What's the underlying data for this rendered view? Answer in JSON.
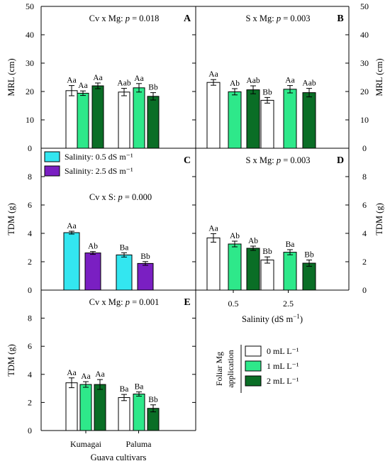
{
  "colors": {
    "white_bar": "#ffffff",
    "light_green": "#2ee88a",
    "dark_green": "#0a6e26",
    "cyan": "#33e6f0",
    "purple": "#7a1fc2",
    "axis": "#000000"
  },
  "chart_data": [
    {
      "id": "A",
      "type": "bar",
      "letter": "A",
      "title_prefix": "Cv x Mg: ",
      "title_p": "p",
      "title_suffix": " = 0.018",
      "ylabel": "MRL (cm)",
      "ylim": [
        0,
        50
      ],
      "yticks": [
        0,
        10,
        20,
        30,
        40,
        50
      ],
      "categories": [
        "Kumagai",
        "Paluma"
      ],
      "series": [
        {
          "name": "0 mL L⁻¹",
          "color": "white_bar",
          "values": [
            20.3,
            19.8
          ],
          "errors": [
            1.8,
            1.3
          ],
          "labels": [
            "Aa",
            "Aab"
          ]
        },
        {
          "name": "1 mL L⁻¹",
          "color": "light_green",
          "values": [
            19.4,
            21.3
          ],
          "errors": [
            0.8,
            1.5
          ],
          "labels": [
            "Aa",
            "Aa"
          ]
        },
        {
          "name": "2 mL L⁻¹",
          "color": "dark_green",
          "values": [
            22.0,
            18.3
          ],
          "errors": [
            1.0,
            1.3
          ],
          "labels": [
            "Aa",
            "Bb"
          ]
        }
      ]
    },
    {
      "id": "B",
      "type": "bar",
      "letter": "B",
      "title_prefix": "S x Mg: ",
      "title_p": "p",
      "title_suffix": " = 0.003",
      "ylabel": "MRL (cm)",
      "ylim": [
        0,
        50
      ],
      "yticks": [
        0,
        10,
        20,
        30,
        40,
        50
      ],
      "categories": [
        "0.5",
        "2.5"
      ],
      "series": [
        {
          "name": "0 mL L⁻¹",
          "color": "white_bar",
          "values": [
            23.2,
            16.9
          ],
          "errors": [
            1.0,
            1.0
          ],
          "labels": [
            "Aa",
            "Bb"
          ]
        },
        {
          "name": "1 mL L⁻¹",
          "color": "light_green",
          "values": [
            19.9,
            20.8
          ],
          "errors": [
            1.1,
            1.3
          ],
          "labels": [
            "Ab",
            "Aa"
          ]
        },
        {
          "name": "2 mL L⁻¹",
          "color": "dark_green",
          "values": [
            20.6,
            19.6
          ],
          "errors": [
            1.4,
            1.5
          ],
          "labels": [
            "Aab",
            "Aab"
          ]
        }
      ]
    },
    {
      "id": "C",
      "type": "bar",
      "letter": "C",
      "title_prefix": "Cv x S: ",
      "title_p": "p",
      "title_suffix": " = 0.000",
      "ylabel": "TDM (g)",
      "ylim": [
        0,
        10
      ],
      "yticks": [
        0,
        2,
        4,
        6,
        8
      ],
      "categories": [
        "Kumagai",
        "Paluma"
      ],
      "legend": {
        "placement": "top-left",
        "entries": [
          {
            "label": "Salinity: 0.5 dS m⁻¹",
            "color": "cyan"
          },
          {
            "label": "Salinity: 2.5 dS m⁻¹",
            "color": "purple"
          }
        ]
      },
      "series": [
        {
          "name": "Salinity: 0.5 dS m⁻¹",
          "color": "cyan",
          "values": [
            4.05,
            2.48
          ],
          "errors": [
            0.1,
            0.15
          ],
          "labels": [
            "Aa",
            "Ba"
          ]
        },
        {
          "name": "Salinity: 2.5 dS m⁻¹",
          "color": "purple",
          "values": [
            2.62,
            1.88
          ],
          "errors": [
            0.1,
            0.13
          ],
          "labels": [
            "Ab",
            "Bb"
          ]
        }
      ]
    },
    {
      "id": "D",
      "type": "bar",
      "letter": "D",
      "title_prefix": "S x Mg: ",
      "title_p": "p",
      "title_suffix": " = 0.003",
      "ylabel": "TDM (g)",
      "xlabel_prefix": "Salinity (dS m",
      "xlabel_sup": "−1",
      "xlabel_suffix": ")",
      "ylim": [
        0,
        10
      ],
      "yticks": [
        0,
        2,
        4,
        6,
        8
      ],
      "categories": [
        "0.5",
        "2.5"
      ],
      "series": [
        {
          "name": "0 mL L⁻¹",
          "color": "white_bar",
          "values": [
            3.68,
            2.12
          ],
          "errors": [
            0.3,
            0.22
          ],
          "labels": [
            "Aa",
            "Bb"
          ]
        },
        {
          "name": "1 mL L⁻¹",
          "color": "light_green",
          "values": [
            3.25,
            2.67
          ],
          "errors": [
            0.2,
            0.18
          ],
          "labels": [
            "Ab",
            "Ba"
          ]
        },
        {
          "name": "2 mL L⁻¹",
          "color": "dark_green",
          "values": [
            2.95,
            1.9
          ],
          "errors": [
            0.15,
            0.22
          ],
          "labels": [
            "Ab",
            "Bb"
          ]
        }
      ]
    },
    {
      "id": "E",
      "type": "bar",
      "letter": "E",
      "title_prefix": "Cv x Mg: ",
      "title_p": "p",
      "title_suffix": " = 0.001",
      "ylabel": "TDM (g)",
      "xlabel": "Guava cultivars",
      "ylim": [
        0,
        10
      ],
      "yticks": [
        0,
        2,
        4,
        6,
        8
      ],
      "categories": [
        "Kumagai",
        "Paluma"
      ],
      "series": [
        {
          "name": "0 mL L⁻¹",
          "color": "white_bar",
          "values": [
            3.4,
            2.35
          ],
          "errors": [
            0.35,
            0.22
          ],
          "labels": [
            "Aa",
            "Ba"
          ]
        },
        {
          "name": "1 mL L⁻¹",
          "color": "light_green",
          "values": [
            3.28,
            2.6
          ],
          "errors": [
            0.2,
            0.15
          ],
          "labels": [
            "Aa",
            "Ba"
          ]
        },
        {
          "name": "2 mL L⁻¹",
          "color": "dark_green",
          "values": [
            3.28,
            1.58
          ],
          "errors": [
            0.35,
            0.25
          ],
          "labels": [
            "Aa",
            "Bb"
          ]
        }
      ]
    }
  ],
  "mg_legend": {
    "title_line1": "Foliar Mg",
    "title_line2": "application",
    "entries": [
      {
        "label": "0 mL L⁻¹",
        "color": "white_bar"
      },
      {
        "label": "1 mL L⁻¹",
        "color": "light_green"
      },
      {
        "label": "2 mL L⁻¹",
        "color": "dark_green"
      }
    ]
  }
}
